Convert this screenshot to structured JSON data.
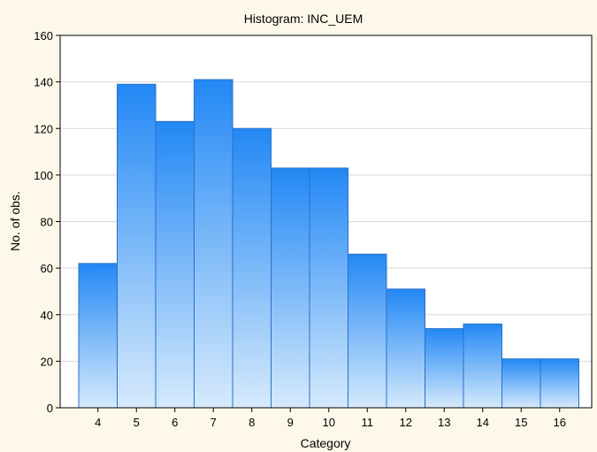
{
  "chart_data": {
    "type": "bar",
    "title": "Histogram: INC_UEM",
    "xlabel": "Category",
    "ylabel": "No. of obs.",
    "categories": [
      "4",
      "5",
      "6",
      "7",
      "8",
      "9",
      "10",
      "11",
      "12",
      "13",
      "14",
      "15",
      "16"
    ],
    "values": [
      62,
      139,
      123,
      141,
      120,
      103,
      103,
      66,
      51,
      34,
      36,
      21,
      21
    ],
    "ylim": [
      0,
      160
    ],
    "yticks": [
      0,
      20,
      40,
      60,
      80,
      100,
      120,
      140,
      160
    ],
    "grid": true,
    "legend": "none",
    "colors": {
      "bar_top": "#2288f5",
      "bar_bottom": "#d6eafc",
      "bar_edge": "#2a6fc8",
      "grid": "#d8d8d8",
      "plot_background": "#ffffff",
      "page_background": "#fdf8ea"
    }
  }
}
